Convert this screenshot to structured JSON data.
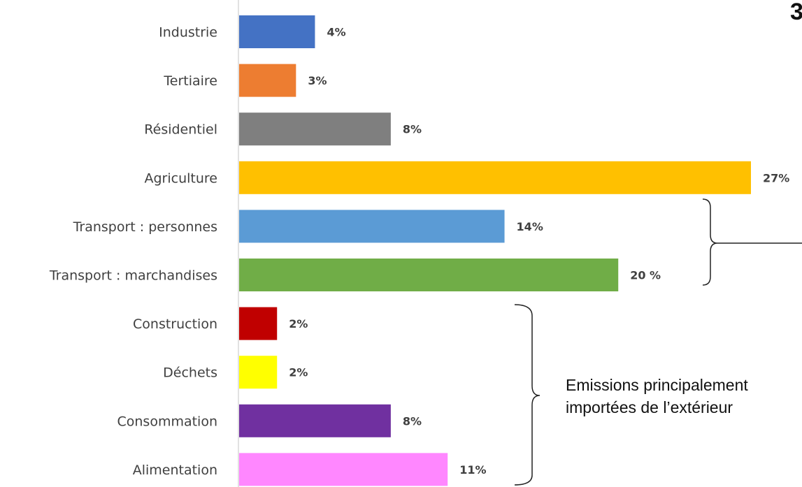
{
  "chart_data": {
    "type": "bar",
    "orientation": "horizontal",
    "categories": [
      "Industrie",
      "Tertiaire",
      "Résidentiel",
      "Agriculture",
      "Transport : personnes",
      "Transport : marchandises",
      "Construction",
      "Déchets",
      "Consommation",
      "Alimentation"
    ],
    "values": [
      4,
      3,
      8,
      27,
      14,
      20,
      2,
      2,
      8,
      11
    ],
    "value_labels": [
      "4%",
      "3%",
      "8%",
      "27%",
      "14%",
      "20 %",
      "2%",
      "2%",
      "8%",
      "11%"
    ],
    "colors": [
      "#4472C4",
      "#ED7D31",
      "#7F7F7F",
      "#FFC000",
      "#5B9BD5",
      "#70AD47",
      "#C00000",
      "#FFFF00",
      "#7030A0",
      "#FF87FF"
    ],
    "xlim": [
      0,
      27
    ],
    "grid": false,
    "legend": "none"
  },
  "annotations": {
    "imported_note_line1": "Emissions principalement",
    "imported_note_line2": "importées de l’extérieur",
    "partial_corner_text": "3"
  }
}
